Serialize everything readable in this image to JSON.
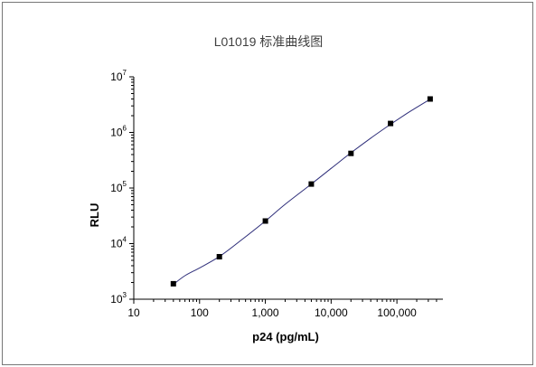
{
  "chart_data": {
    "type": "scatter",
    "title": "L01019 标准曲线图",
    "xlabel": "p24 (pg/mL)",
    "ylabel": "RLU",
    "x_scale": "log",
    "y_scale": "log",
    "xlim": [
      10,
      500000
    ],
    "ylim": [
      1000,
      10000000
    ],
    "x_ticks": [
      {
        "value": 10,
        "label": "10"
      },
      {
        "value": 100,
        "label": "100"
      },
      {
        "value": 1000,
        "label": "1,000"
      },
      {
        "value": 10000,
        "label": "10,000"
      },
      {
        "value": 100000,
        "label": "100,000"
      }
    ],
    "y_ticks": [
      {
        "value": 1000,
        "base": "10",
        "exp": "3"
      },
      {
        "value": 10000,
        "base": "10",
        "exp": "4"
      },
      {
        "value": 100000,
        "base": "10",
        "exp": "5"
      },
      {
        "value": 1000000,
        "base": "10",
        "exp": "6"
      },
      {
        "value": 10000000,
        "base": "10",
        "exp": "7"
      }
    ],
    "series": [
      {
        "x": [
          40,
          200,
          1000,
          5000,
          20000,
          80000,
          320000
        ],
        "y": [
          1900,
          5800,
          25500,
          118000,
          420000,
          1450000,
          4000000
        ],
        "marker": "square",
        "color": "#000000"
      }
    ],
    "fit_line": {
      "x": [
        40,
        60,
        100,
        200,
        400,
        1000,
        2000,
        5000,
        10000,
        20000,
        40000,
        80000,
        160000,
        320000
      ],
      "y": [
        1850,
        2650,
        3650,
        5850,
        10800,
        25500,
        51000,
        118000,
        225000,
        430000,
        790000,
        1400000,
        2400000,
        3950000
      ],
      "color": "#2e2e7a"
    },
    "grid": false,
    "legend": "none"
  }
}
